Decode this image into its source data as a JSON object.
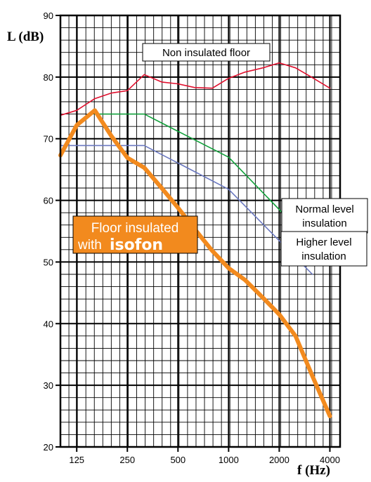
{
  "chart_data": {
    "type": "line",
    "xlabel": "f (Hz)",
    "ylabel": "L (dB)",
    "x_scale": "log",
    "xlim": [
      100,
      4600
    ],
    "ylim": [
      20,
      90
    ],
    "y_ticks": [
      20,
      30,
      40,
      50,
      60,
      70,
      80,
      90
    ],
    "x_ticks": [
      {
        "value": 125,
        "label": "125"
      },
      {
        "value": 250,
        "label": "250"
      },
      {
        "value": 500,
        "label": "500"
      },
      {
        "value": 1000,
        "label": "1000"
      },
      {
        "value": 2000,
        "label": "2000"
      },
      {
        "value": 4000,
        "label": "4000"
      }
    ],
    "grid": true,
    "series": [
      {
        "name": "Non insulated floor",
        "color": "#e0102e",
        "width": 1.6,
        "points": [
          [
            100,
            73.8
          ],
          [
            125,
            74.6
          ],
          [
            160,
            76.5
          ],
          [
            200,
            77.4
          ],
          [
            250,
            77.8
          ],
          [
            315,
            80.4
          ],
          [
            400,
            79.2
          ],
          [
            500,
            78.9
          ],
          [
            630,
            78.3
          ],
          [
            800,
            78.2
          ],
          [
            1000,
            79.8
          ],
          [
            1250,
            80.8
          ],
          [
            1600,
            81.5
          ],
          [
            2000,
            82.3
          ],
          [
            2500,
            81.5
          ],
          [
            3150,
            79.9
          ],
          [
            4000,
            78.2
          ]
        ]
      },
      {
        "name": "Normal level insulation",
        "color": "#10a03a",
        "width": 1.6,
        "points": [
          [
            160,
            74
          ],
          [
            315,
            74
          ],
          [
            1000,
            67
          ],
          [
            4000,
            50
          ]
        ]
      },
      {
        "name": "Higher level insulation",
        "color": "#6a78c0",
        "width": 1.6,
        "points": [
          [
            100,
            68.9
          ],
          [
            315,
            68.9
          ],
          [
            1000,
            61.8
          ],
          [
            3150,
            48
          ]
        ]
      },
      {
        "name": "Floor insulated with isofon",
        "color": "#f28a1e",
        "width": 6,
        "points": [
          [
            100,
            67.3
          ],
          [
            125,
            72.2
          ],
          [
            160,
            74.6
          ],
          [
            200,
            70.5
          ],
          [
            250,
            66.9
          ],
          [
            315,
            65.3
          ],
          [
            400,
            62
          ],
          [
            500,
            58.8
          ],
          [
            630,
            55.3
          ],
          [
            800,
            51.8
          ],
          [
            1000,
            49
          ],
          [
            1250,
            47.1
          ],
          [
            1600,
            44.2
          ],
          [
            2000,
            41.5
          ],
          [
            2500,
            38
          ],
          [
            3150,
            31.5
          ],
          [
            4000,
            25
          ]
        ]
      }
    ],
    "annotations": [
      {
        "name": "non-insulated-label",
        "lines": [
          "Non insulated floor"
        ]
      },
      {
        "name": "normal-level-label",
        "lines": [
          "Normal level",
          "insulation"
        ]
      },
      {
        "name": "higher-level-label",
        "lines": [
          "Higher level",
          "insulation"
        ]
      },
      {
        "name": "isofon-label",
        "lines": [
          "Floor insulated",
          "with"
        ],
        "brand": "isofon",
        "fill": "#f28a1e"
      }
    ]
  }
}
